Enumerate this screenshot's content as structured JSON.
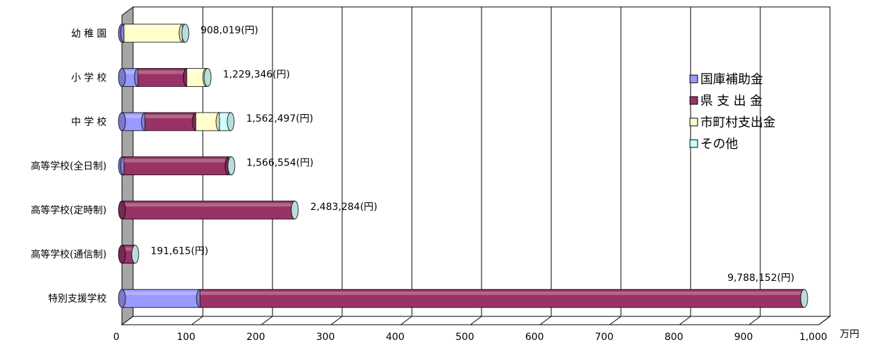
{
  "chart_data": {
    "type": "bar",
    "orientation": "horizontal",
    "stacked": true,
    "categories": [
      "幼稚園",
      "小学校",
      "中学校",
      "高等学校(全日制)",
      "高等学校(定時制)",
      "高等学校(通信制)",
      "特別支援学校"
    ],
    "category_labels": [
      "幼 稚 園",
      "小 学 校",
      "中 学 校",
      "高等学校(全日制)",
      "高等学校(定時制)",
      "高等学校(通信制)",
      "特別支援学校"
    ],
    "series": [
      {
        "name": "国庫補助金",
        "color": "#9999ff",
        "values": [
          3,
          23,
          33,
          3,
          0,
          0,
          112
        ]
      },
      {
        "name": "県 支 出 金",
        "color": "#993366",
        "values": [
          0,
          70,
          73,
          150,
          248,
          19,
          867
        ]
      },
      {
        "name": "市町村支出金",
        "color": "#ffffcc",
        "values": [
          84,
          28,
          34,
          0,
          0,
          0,
          0
        ]
      },
      {
        "name": "その他",
        "color": "#ccffff",
        "values": [
          4,
          2,
          16,
          4,
          0,
          0,
          0
        ]
      }
    ],
    "data_labels": [
      "908,019(円)",
      "1,229,346(円)",
      "1,562,497(円)",
      "1,566,554(円)",
      "2,483,284(円)",
      "191,615(円)",
      "9,788,152(円)"
    ],
    "totals": [
      90.8019,
      122.9346,
      156.2497,
      156.6554,
      248.3284,
      19.1615,
      978.8152
    ],
    "x_ticks": [
      "0",
      "100",
      "200",
      "300",
      "400",
      "500",
      "600",
      "700",
      "800",
      "900",
      "1,000"
    ],
    "xlim": [
      0,
      1000
    ],
    "x_unit_label": "万円",
    "grid": true,
    "legend_position": "right"
  }
}
